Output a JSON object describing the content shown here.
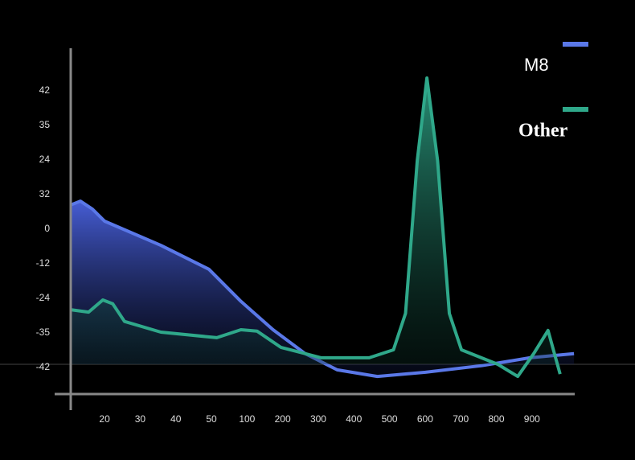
{
  "chart_data": {
    "type": "area",
    "ycategories": [
      "42",
      "35",
      "24",
      "32",
      "0",
      "-12",
      "-24",
      "-35",
      "-42"
    ],
    "xcategories": [
      "20",
      "30",
      "40",
      "50",
      "100",
      "200",
      "300",
      "400",
      "500",
      "600",
      "700",
      "800",
      "900"
    ],
    "xlim": [
      -0.95,
      13.2
    ],
    "ylim": [
      -0.77,
      9.23
    ],
    "series": [
      {
        "name": "M8",
        "color": "#5a78e8",
        "x": [
          -0.95,
          -0.68,
          -0.34,
          0,
          1.58,
          2.93,
          3.83,
          4.73,
          5.63,
          6.53,
          7.66,
          9.01,
          10.59,
          11.94,
          13.18
        ],
        "values": [
          4.7,
          4.81,
          4.58,
          4.23,
          3.53,
          2.84,
          1.91,
          1.09,
          0.4,
          -0.07,
          -0.26,
          -0.14,
          0.05,
          0.28,
          0.4
        ]
      },
      {
        "name": "Other",
        "color": "#2fa88a",
        "x": [
          -0.95,
          -0.45,
          -0.05,
          0.23,
          0.56,
          1.58,
          3.15,
          3.83,
          4.28,
          4.95,
          6.08,
          7.43,
          8.11,
          8.45,
          8.78,
          9.05,
          9.35,
          9.68,
          10.02,
          11.04,
          11.6,
          12.05,
          12.45,
          12.79
        ],
        "values": [
          1.67,
          1.6,
          1.95,
          1.84,
          1.33,
          1.02,
          0.86,
          1.09,
          1.05,
          0.58,
          0.28,
          0.28,
          0.51,
          1.56,
          5.98,
          8.37,
          5.98,
          1.56,
          0.51,
          0.09,
          -0.26,
          0.4,
          1.07,
          -0.19
        ]
      }
    ]
  }
}
